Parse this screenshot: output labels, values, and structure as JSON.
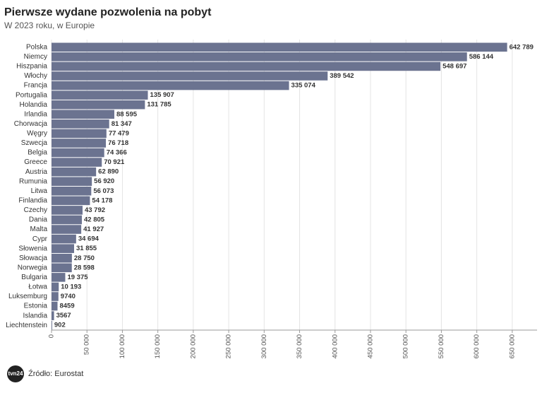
{
  "chart_data": {
    "type": "bar",
    "orientation": "horizontal",
    "title": "Pierwsze wydane pozwolenia na pobyt",
    "subtitle": "W 2023 roku, w Europie",
    "source": "Źródło: Eurostat",
    "logo": "tvn24",
    "color": "#6b7390",
    "grid": true,
    "categories": [
      "Polska",
      "Niemcy",
      "Hiszpania",
      "Włochy",
      "Francja",
      "Portugalia",
      "Holandia",
      "Irlandia",
      "Chorwacja",
      "Węgry",
      "Szwecja",
      "Belgia",
      "Greece",
      "Austria",
      "Rumunia",
      "Litwa",
      "Finlandia",
      "Czechy",
      "Dania",
      "Malta",
      "Cypr",
      "Słowenia",
      "Słowacja",
      "Norwegia",
      "Bulgaria",
      "Łotwa",
      "Luksemburg",
      "Estonia",
      "Islandia",
      "Liechtenstein"
    ],
    "values": [
      642789,
      586144,
      548697,
      389542,
      335074,
      135907,
      131785,
      88595,
      81347,
      77479,
      76718,
      74366,
      70921,
      62890,
      56920,
      56073,
      54178,
      43792,
      42805,
      41927,
      34694,
      31855,
      28750,
      28598,
      19375,
      10193,
      9740,
      8459,
      3567,
      902
    ],
    "value_labels": [
      "642 789",
      "586 144",
      "548 697",
      "389 542",
      "335 074",
      "135 907",
      "131 785",
      "88 595",
      "81 347",
      "77 479",
      "76 718",
      "74 366",
      "70 921",
      "62 890",
      "56 920",
      "56 073",
      "54 178",
      "43 792",
      "42 805",
      "41 927",
      "34 694",
      "31 855",
      "28 750",
      "28 598",
      "19 375",
      "10 193",
      "9740",
      "8459",
      "3567",
      "902"
    ],
    "xlim": [
      0,
      685000
    ],
    "xticks": [
      0,
      {
        "value": 50000,
        "label": "50 000"
      },
      {
        "value": 100000,
        "label": "100 000"
      },
      {
        "value": 150000,
        "label": "150 000"
      },
      {
        "value": 200000,
        "label": "200 000"
      },
      {
        "value": 250000,
        "label": "250 000"
      },
      {
        "value": 300000,
        "label": "300 000"
      },
      {
        "value": 350000,
        "label": "350 000"
      },
      {
        "value": 400000,
        "label": "400 000"
      },
      {
        "value": 450000,
        "label": "450 000"
      },
      {
        "value": 500000,
        "label": "500 000"
      },
      {
        "value": 550000,
        "label": "550 000"
      },
      {
        "value": 600000,
        "label": "600 000"
      },
      {
        "value": 650000,
        "label": "650 000"
      }
    ]
  }
}
